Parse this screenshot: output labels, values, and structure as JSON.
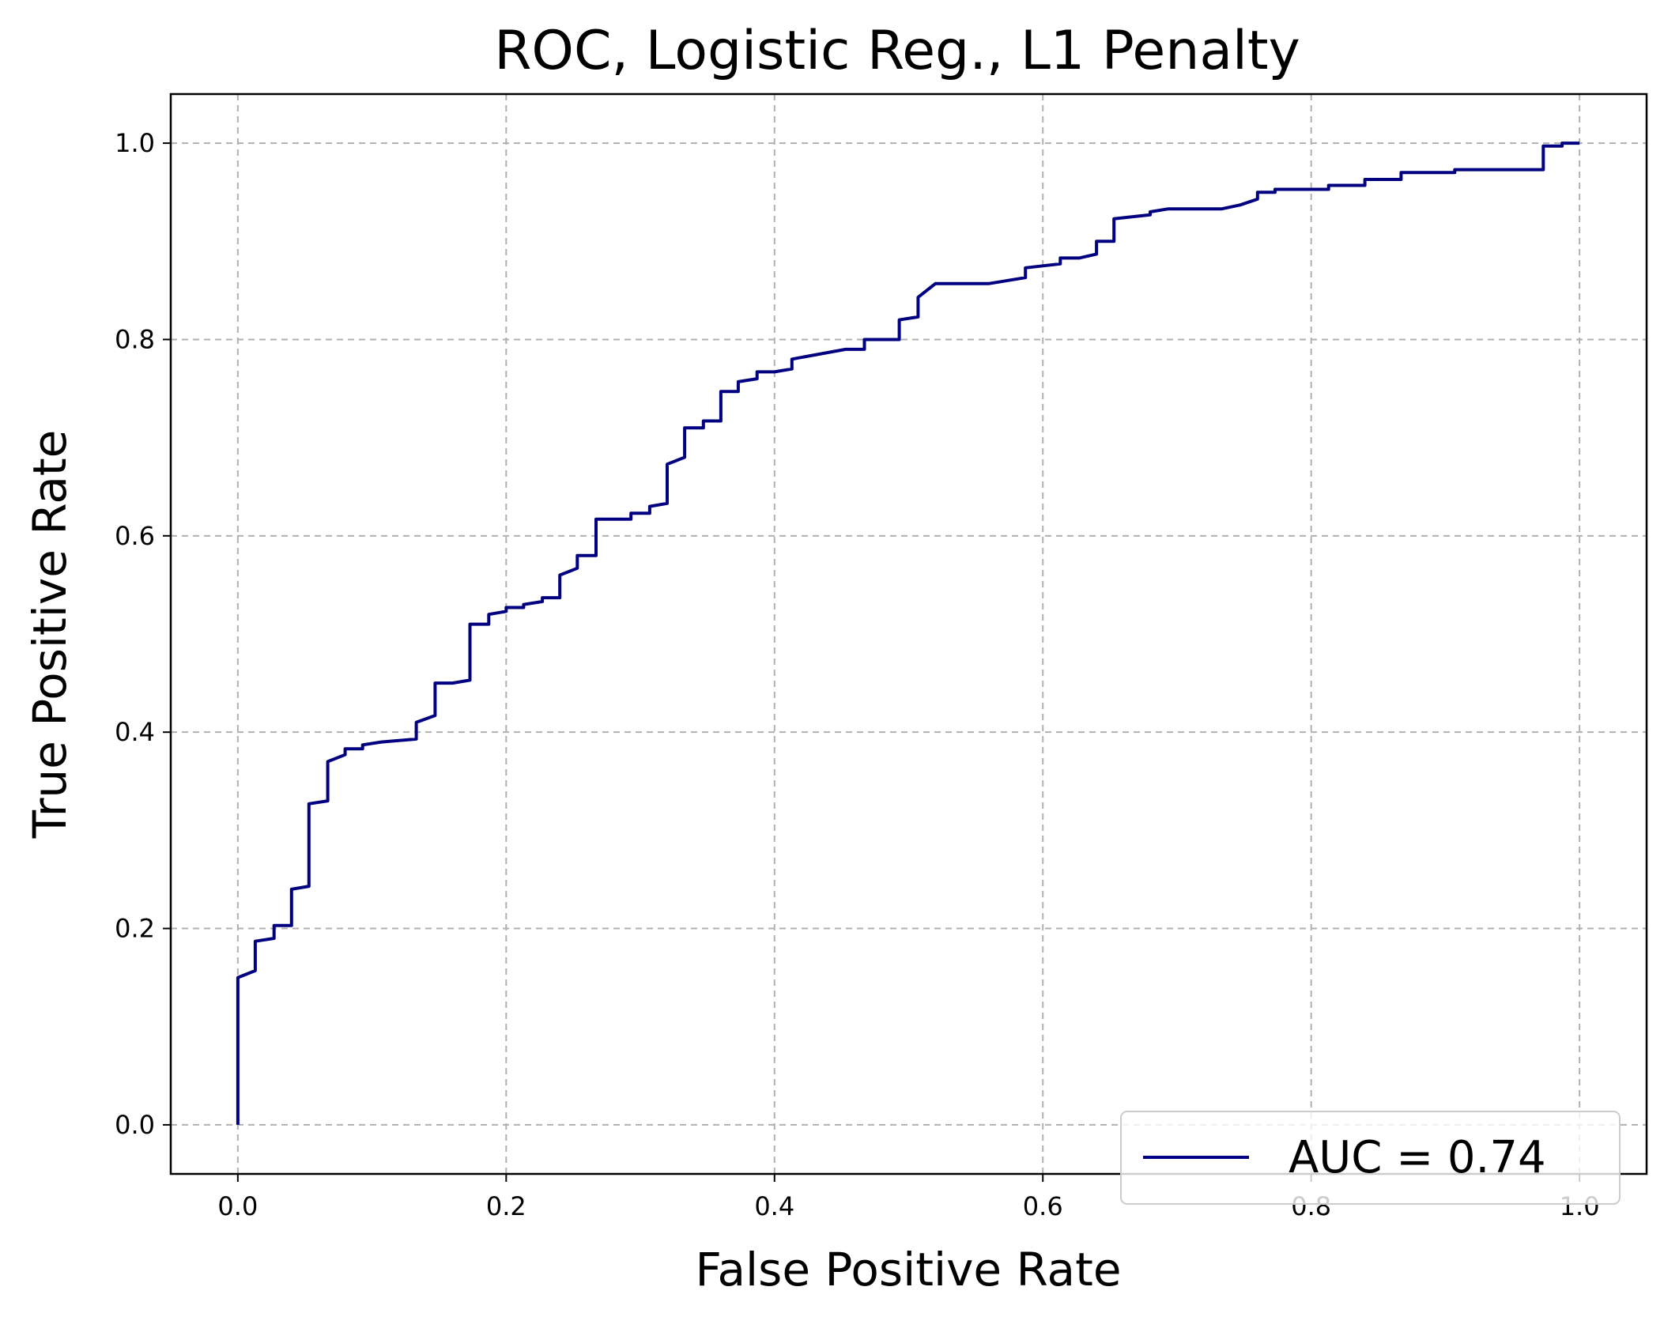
{
  "chart_data": {
    "type": "line",
    "title": "ROC, Logistic Reg., L1 Penalty",
    "xlabel": "False Positive Rate",
    "ylabel": "True Positive Rate",
    "xlim": [
      -0.05,
      1.05
    ],
    "ylim": [
      -0.05,
      1.05
    ],
    "xticks": [
      "0.0",
      "0.2",
      "0.4",
      "0.6",
      "0.8",
      "1.0"
    ],
    "yticks": [
      "0.0",
      "0.2",
      "0.4",
      "0.6",
      "0.8",
      "1.0"
    ],
    "grid": true,
    "legend_position": "lower-right",
    "series": [
      {
        "name": "AUC = 0.74",
        "color": "#000080",
        "x": [
          0.0,
          0.0,
          0.013,
          0.013,
          0.027,
          0.027,
          0.04,
          0.04,
          0.053,
          0.053,
          0.067,
          0.067,
          0.08,
          0.08,
          0.093,
          0.093,
          0.107,
          0.133,
          0.133,
          0.147,
          0.147,
          0.16,
          0.173,
          0.173,
          0.187,
          0.187,
          0.2,
          0.2,
          0.213,
          0.213,
          0.227,
          0.227,
          0.24,
          0.24,
          0.253,
          0.253,
          0.267,
          0.267,
          0.293,
          0.293,
          0.307,
          0.307,
          0.32,
          0.32,
          0.333,
          0.333,
          0.347,
          0.347,
          0.36,
          0.36,
          0.373,
          0.373,
          0.387,
          0.387,
          0.4,
          0.413,
          0.413,
          0.453,
          0.467,
          0.467,
          0.493,
          0.493,
          0.507,
          0.507,
          0.52,
          0.56,
          0.587,
          0.587,
          0.613,
          0.613,
          0.627,
          0.64,
          0.64,
          0.653,
          0.653,
          0.68,
          0.68,
          0.693,
          0.733,
          0.747,
          0.76,
          0.76,
          0.773,
          0.773,
          0.813,
          0.813,
          0.84,
          0.84,
          0.867,
          0.867,
          0.907,
          0.907,
          0.973,
          0.973,
          0.987,
          0.987,
          1.0
        ],
        "y": [
          0.0,
          0.15,
          0.157,
          0.187,
          0.19,
          0.203,
          0.203,
          0.24,
          0.243,
          0.327,
          0.33,
          0.37,
          0.377,
          0.383,
          0.383,
          0.387,
          0.39,
          0.393,
          0.41,
          0.417,
          0.45,
          0.45,
          0.453,
          0.51,
          0.51,
          0.52,
          0.523,
          0.527,
          0.527,
          0.53,
          0.533,
          0.537,
          0.537,
          0.56,
          0.567,
          0.58,
          0.58,
          0.617,
          0.617,
          0.623,
          0.623,
          0.63,
          0.633,
          0.673,
          0.68,
          0.71,
          0.71,
          0.717,
          0.717,
          0.747,
          0.747,
          0.757,
          0.76,
          0.767,
          0.767,
          0.77,
          0.78,
          0.79,
          0.79,
          0.8,
          0.8,
          0.82,
          0.823,
          0.843,
          0.857,
          0.857,
          0.863,
          0.873,
          0.877,
          0.883,
          0.883,
          0.887,
          0.9,
          0.9,
          0.923,
          0.927,
          0.93,
          0.933,
          0.933,
          0.937,
          0.943,
          0.95,
          0.95,
          0.953,
          0.953,
          0.957,
          0.957,
          0.963,
          0.963,
          0.97,
          0.97,
          0.973,
          0.973,
          0.997,
          0.997,
          1.0,
          1.0
        ]
      }
    ]
  }
}
